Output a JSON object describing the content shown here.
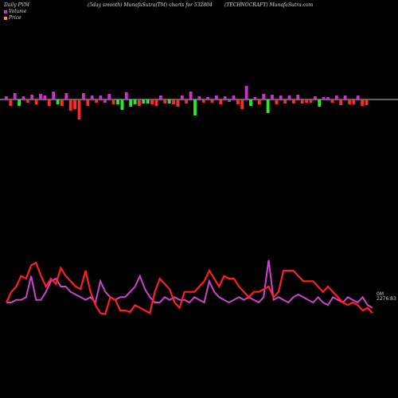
{
  "header": {
    "left": "Daily PVM",
    "middle": "(5day smooth) MunafaSutra(TM) charts for 532804",
    "right": "(TECHNOCRAFT) MunafaSutra.com"
  },
  "legend": [
    {
      "label": "Volume",
      "color": "#cc33cc"
    },
    {
      "label": "Price",
      "color": "#ff8c5a"
    }
  ],
  "price_label": "2276.83",
  "vol_label": "0M",
  "colors": {
    "up": "#ff2a2a",
    "down": "#22ee22",
    "flat": "#cc33cc",
    "baseline": "#ffffff",
    "price": "#ff2020",
    "volume": "#cc44cc"
  },
  "chart_data": {
    "type": "bar-line",
    "bars": {
      "values": [
        4,
        -8,
        8,
        -8,
        4,
        -4,
        6,
        -6,
        7,
        5,
        -8,
        10,
        -6,
        -8,
        8,
        -14,
        -12,
        -25,
        8,
        -8,
        5,
        -4,
        5,
        -4,
        7,
        -6,
        -6,
        -13,
        9,
        -9,
        -6,
        -8,
        -5,
        -5,
        -6,
        -8,
        5,
        -5,
        -5,
        -6,
        -9,
        5,
        -5,
        10,
        -20,
        4,
        -4,
        3,
        -4,
        5,
        -6,
        4,
        -3,
        5,
        -6,
        -12,
        17,
        -8,
        3,
        -6,
        7,
        -17,
        6,
        -6,
        5,
        -5,
        5,
        -5,
        6,
        -5,
        -4,
        -4,
        4,
        -9,
        3,
        3,
        -4,
        5,
        -7,
        5,
        -6,
        -6,
        5,
        -8,
        -7
      ],
      "signs": [
        0,
        1,
        0,
        1,
        0,
        1,
        0,
        1,
        0,
        0,
        1,
        0,
        1,
        1,
        0,
        1,
        1,
        1,
        0,
        1,
        0,
        1,
        0,
        1,
        0,
        1,
        1,
        1,
        0,
        1,
        1,
        1,
        1,
        1,
        1,
        1,
        0,
        1,
        1,
        1,
        1,
        0,
        1,
        0,
        1,
        0,
        1,
        0,
        1,
        0,
        1,
        0,
        1,
        0,
        1,
        1,
        0,
        1,
        0,
        1,
        0,
        1,
        0,
        1,
        0,
        1,
        0,
        1,
        0,
        1,
        1,
        1,
        0,
        1,
        0,
        0,
        1,
        0,
        1,
        0,
        1,
        1,
        0,
        1,
        1
      ],
      "kinds": [
        2,
        0,
        2,
        1,
        2,
        0,
        2,
        0,
        2,
        2,
        0,
        2,
        1,
        0,
        2,
        0,
        0,
        0,
        2,
        0,
        2,
        0,
        2,
        2,
        2,
        0,
        1,
        1,
        2,
        1,
        1,
        0,
        1,
        1,
        0,
        0,
        2,
        0,
        1,
        0,
        0,
        2,
        0,
        2,
        1,
        2,
        0,
        2,
        0,
        2,
        0,
        2,
        2,
        2,
        0,
        0,
        2,
        1,
        2,
        0,
        2,
        1,
        2,
        0,
        2,
        0,
        2,
        0,
        2,
        0,
        0,
        0,
        2,
        1,
        2,
        2,
        0,
        2,
        0,
        2,
        0,
        0,
        2,
        0,
        0
      ]
    },
    "price_series": [
      2400,
      2420,
      2430,
      2450,
      2445,
      2470,
      2475,
      2450,
      2430,
      2445,
      2435,
      2465,
      2450,
      2440,
      2430,
      2425,
      2460,
      2420,
      2395,
      2380,
      2378,
      2410,
      2405,
      2385,
      2385,
      2382,
      2395,
      2390,
      2385,
      2380,
      2420,
      2445,
      2435,
      2425,
      2400,
      2390,
      2420,
      2420,
      2420,
      2430,
      2440,
      2460,
      2445,
      2430,
      2450,
      2445,
      2445,
      2430,
      2420,
      2410,
      2420,
      2420,
      2425,
      2430,
      2410,
      2420,
      2460,
      2460,
      2460,
      2450,
      2440,
      2440,
      2440,
      2430,
      2420,
      2430,
      2420,
      2410,
      2400,
      2395,
      2400,
      2395,
      2385,
      2390,
      2380
    ],
    "volume_series": [
      2400,
      2400,
      2405,
      2405,
      2410,
      2450,
      2405,
      2405,
      2420,
      2440,
      2445,
      2430,
      2430,
      2420,
      2415,
      2410,
      2405,
      2410,
      2400,
      2440,
      2420,
      2410,
      2405,
      2410,
      2410,
      2420,
      2430,
      2450,
      2425,
      2410,
      2400,
      2400,
      2410,
      2405,
      2410,
      2405,
      2405,
      2400,
      2410,
      2405,
      2400,
      2440,
      2420,
      2410,
      2405,
      2400,
      2405,
      2410,
      2405,
      2410,
      2405,
      2400,
      2410,
      2480,
      2405,
      2410,
      2405,
      2400,
      2410,
      2415,
      2410,
      2405,
      2400,
      2410,
      2400,
      2395,
      2410,
      2405,
      2400,
      2410,
      2405,
      2400,
      2410,
      2395,
      2390
    ]
  }
}
